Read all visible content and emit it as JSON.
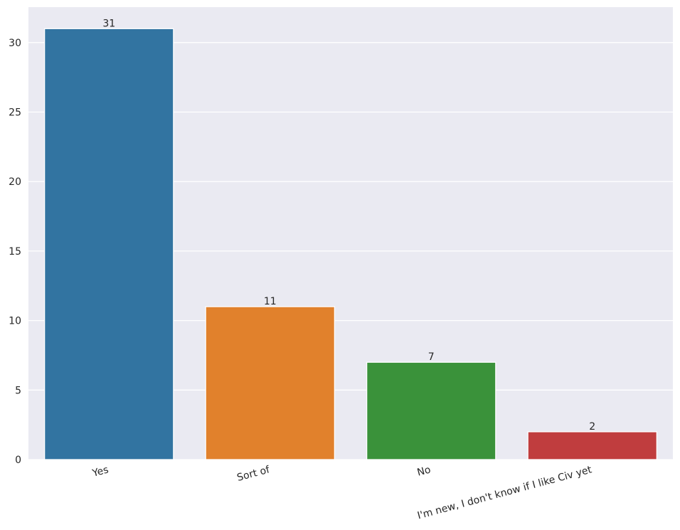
{
  "chart_data": {
    "type": "bar",
    "categories": [
      "Yes",
      "Sort of",
      "No",
      "I'm new, I don't know if I like Civ yet"
    ],
    "values": [
      31,
      11,
      7,
      2
    ],
    "colors": [
      "#3274a1",
      "#e1812c",
      "#3a923a",
      "#c03d3e"
    ],
    "ylim": [
      0,
      32.55
    ],
    "yticks": [
      0,
      5,
      10,
      15,
      20,
      25,
      30
    ],
    "grid": true
  }
}
